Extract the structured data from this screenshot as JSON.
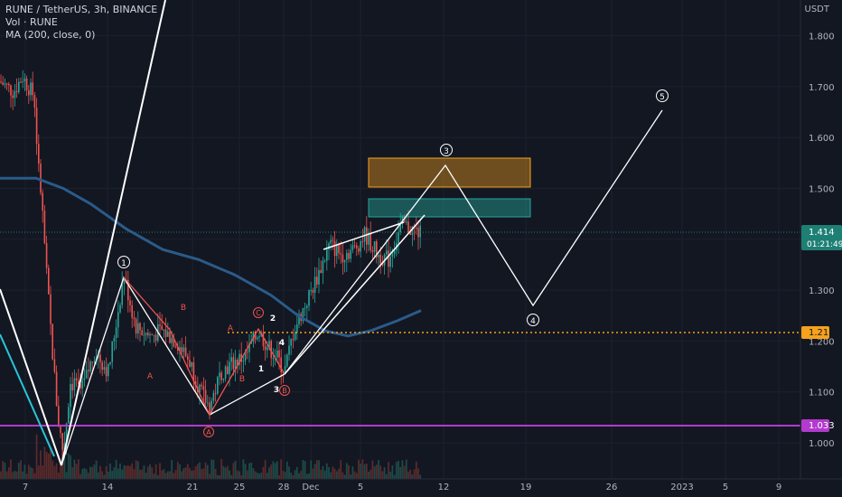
{
  "header": {
    "symbol_line": "RUNE / TetherUS, 3h, BINANCE",
    "indicator_vol": "Vol · RUNE",
    "indicator_ma": "MA (200, close, 0)"
  },
  "price_axis": {
    "unit": "USDT",
    "ticks": [
      "1.800",
      "1.700",
      "1.600",
      "1.500",
      "1.400",
      "1.300",
      "1.200",
      "1.100",
      "1.000"
    ]
  },
  "time_axis": {
    "ticks": [
      "7",
      "14",
      "21",
      "25",
      "28",
      "Dec",
      "5",
      "12",
      "19",
      "26",
      "2023",
      "5",
      "9"
    ]
  },
  "price_tags": {
    "last_price": "1.414",
    "countdown": "01:21:49",
    "orange_level": "1.216",
    "purple_level": "1.033"
  },
  "wave_labels": {
    "main": [
      "1",
      "3",
      "4",
      "5"
    ],
    "sub_red": [
      "A",
      "B",
      "A",
      "B"
    ],
    "sub_red_circled": [
      "A",
      "C",
      "B"
    ],
    "small_white": [
      "2",
      "4",
      "1",
      "3"
    ]
  },
  "colors": {
    "background": "#131722",
    "bull": "#26a69a",
    "bear": "#ef5350",
    "ma": "#2962ff",
    "orange_level": "#f7a21b",
    "purple_level": "#b23acd",
    "last_price_tag": "#1e7f74",
    "orange_zone": "#f7a21b",
    "green_zone": "#26a69a",
    "wave_lines": "#ffffff",
    "sub_wave_lines": "#ef5350"
  },
  "chart_data": {
    "type": "candlestick",
    "symbol": "RUNE / TetherUS",
    "timeframe": "3h",
    "exchange": "BINANCE",
    "ylim": [
      0.92,
      1.88
    ],
    "last_price": 1.414,
    "horizontal_levels": [
      1.216,
      1.033
    ],
    "ma_period": 200,
    "zones": [
      {
        "color": "orange",
        "from": 1.505,
        "to": 1.56
      },
      {
        "color": "green",
        "from": 1.43,
        "to": 1.465
      }
    ],
    "projection_targets": [
      {
        "label": "3",
        "price": 1.55
      },
      {
        "label": "4",
        "price": 1.27
      },
      {
        "label": "5",
        "price": 1.65
      }
    ]
  }
}
